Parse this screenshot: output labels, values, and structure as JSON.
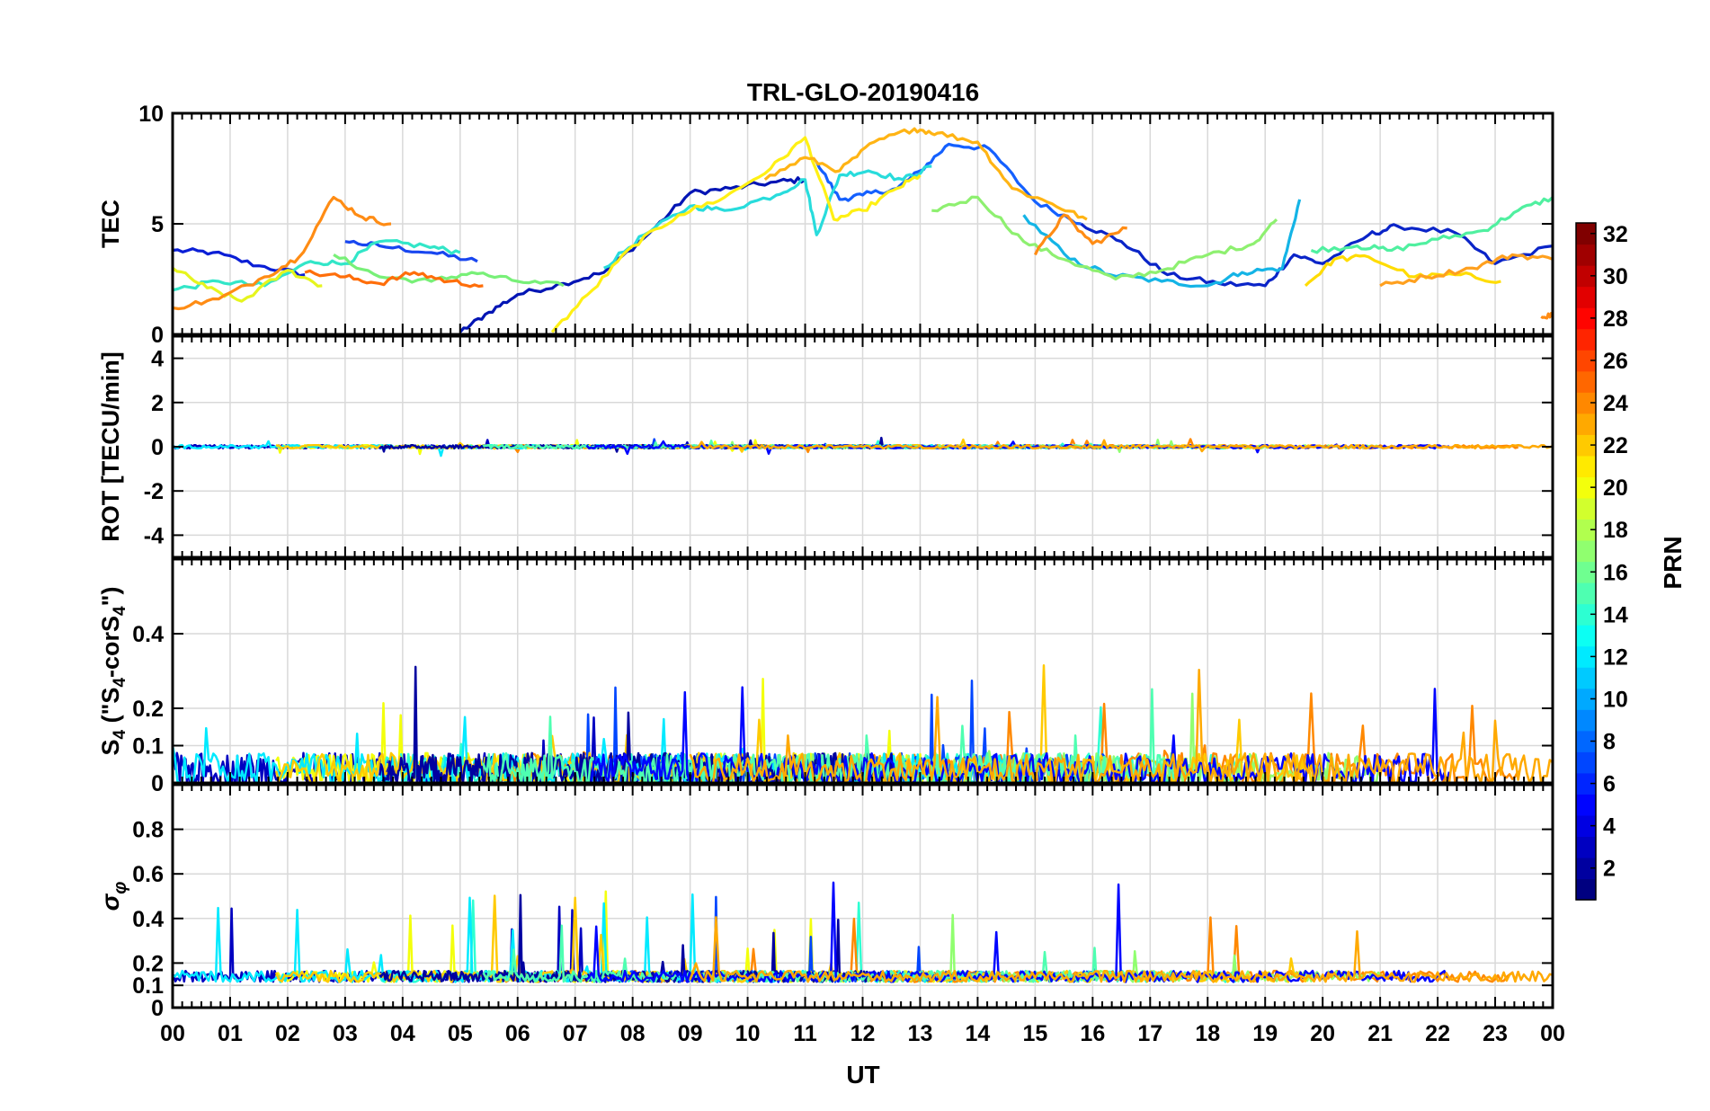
{
  "chart_data": {
    "type": "line",
    "title": "TRL-GLO-20190416",
    "xlabel": "UT",
    "x_tick_labels": [
      "00",
      "01",
      "02",
      "03",
      "04",
      "05",
      "06",
      "07",
      "08",
      "09",
      "10",
      "11",
      "12",
      "13",
      "14",
      "15",
      "16",
      "17",
      "18",
      "19",
      "20",
      "21",
      "22",
      "23",
      "00"
    ],
    "xlim": [
      0,
      24
    ],
    "colorbar": {
      "label": "PRN",
      "range": [
        1,
        32
      ],
      "tick_labels": [
        "2",
        "4",
        "6",
        "8",
        "10",
        "12",
        "14",
        "16",
        "18",
        "20",
        "22",
        "24",
        "26",
        "28",
        "30",
        "32"
      ],
      "colormap": "jet"
    },
    "panels": [
      {
        "name": "tec",
        "ylabel": "TEC",
        "ylim": [
          0,
          10
        ],
        "y_ticks": [
          0,
          5,
          10
        ],
        "y_tick_labels": [
          "0",
          "5",
          "10"
        ],
        "series": [
          {
            "prn": 3,
            "color": "#0a1ed6",
            "x": [
              0,
              0.7,
              1.5,
              2.3
            ],
            "y": [
              3.8,
              3.7,
              3.1,
              2.7
            ]
          },
          {
            "prn": 5,
            "color": "#1846f0",
            "x": [
              3.0,
              3.6,
              4.5,
              5.3
            ],
            "y": [
              4.2,
              4.0,
              3.7,
              3.3
            ]
          },
          {
            "prn": 2,
            "color": "#0014b4",
            "x": [
              5.0,
              5.5,
              6.0,
              6.8,
              7.5,
              8.3,
              9.0,
              9.7,
              10.5,
              11.0
            ],
            "y": [
              0.1,
              1.0,
              1.8,
              2.3,
              2.8,
              4.6,
              6.4,
              6.6,
              6.9,
              7.0
            ]
          },
          {
            "prn": 7,
            "color": "#1460ff",
            "x": [
              11.2,
              11.6,
              12.0,
              12.6,
              13.0,
              13.5,
              14.2,
              15.0,
              15.8
            ],
            "y": [
              7.8,
              6.1,
              6.3,
              6.6,
              7.4,
              8.6,
              8.4,
              6.0,
              5.0
            ]
          },
          {
            "prn": 4,
            "color": "#0a24c8",
            "x": [
              15.8,
              16.5,
              17.3,
              18.2,
              19.0,
              19.5,
              20.0,
              20.8,
              21.3,
              22.3,
              23.0,
              24.0
            ],
            "y": [
              5.0,
              4.2,
              2.7,
              2.3,
              2.2,
              3.6,
              3.2,
              4.5,
              4.9,
              4.6,
              3.2,
              4.0
            ]
          },
          {
            "prn": 12,
            "color": "#14b4e6",
            "x": [
              14.8,
              15.6,
              16.3,
              17.2,
              18.0,
              18.6,
              19.3,
              19.6
            ],
            "y": [
              5.4,
              3.4,
              2.7,
              2.4,
              2.2,
              2.8,
              3.0,
              6.1
            ]
          },
          {
            "prn": 14,
            "color": "#32e6c8",
            "x": [
              0,
              0.8,
              1.6,
              2.4,
              3.0,
              3.6,
              4.4,
              5.0
            ],
            "y": [
              2.0,
              2.4,
              2.2,
              3.3,
              3.2,
              4.2,
              4.0,
              3.7
            ]
          },
          {
            "prn": 13,
            "color": "#28dcdc",
            "x": [
              7.5,
              8.2,
              9.0,
              9.6,
              10.5,
              11.0,
              11.2,
              11.6,
              12.1,
              12.7,
              13.2
            ],
            "y": [
              3.0,
              4.5,
              5.8,
              5.6,
              6.3,
              7.0,
              4.5,
              7.2,
              7.4,
              7.0,
              7.6
            ]
          },
          {
            "prn": 16,
            "color": "#78f078",
            "x": [
              2.8,
              3.6,
              4.5,
              5.2,
              6.0,
              6.8
            ],
            "y": [
              3.6,
              2.6,
              2.4,
              2.8,
              2.4,
              2.2
            ]
          },
          {
            "prn": 17,
            "color": "#8ef070",
            "x": [
              13.2,
              14.0,
              14.8,
              15.6,
              16.4,
              17.2,
              18.0,
              18.8,
              19.2
            ],
            "y": [
              5.6,
              6.2,
              4.2,
              3.3,
              2.5,
              2.9,
              3.6,
              4.1,
              5.2
            ]
          },
          {
            "prn": 15,
            "color": "#50f0a0",
            "x": [
              19.8,
              20.6,
              21.2,
              22.0,
              22.8,
              23.4,
              24.0
            ],
            "y": [
              3.8,
              4.0,
              3.8,
              4.3,
              4.7,
              5.6,
              6.2
            ]
          },
          {
            "prn": 20,
            "color": "#fff014",
            "x": [
              6.6,
              7.3,
              8.0,
              8.8,
              9.6,
              10.4,
              11.0,
              11.5,
              12.0,
              12.6,
              13.0
            ],
            "y": [
              0.1,
              2.0,
              4.0,
              5.4,
              6.2,
              7.5,
              8.9,
              5.2,
              5.6,
              6.6,
              7.2
            ]
          },
          {
            "prn": 19,
            "color": "#e6f51e",
            "x": [
              0,
              0.6,
              1.2,
              2.0,
              2.6
            ],
            "y": [
              3.0,
              2.1,
              1.5,
              2.9,
              2.2
            ]
          },
          {
            "prn": 21,
            "color": "#ffdc00",
            "x": [
              19.7,
              20.2,
              20.8,
              21.6,
              22.4,
              23.1
            ],
            "y": [
              2.2,
              3.4,
              3.5,
              2.6,
              2.7,
              2.4
            ]
          },
          {
            "prn": 22,
            "color": "#ffb414",
            "x": [
              10.3,
              11.0,
              11.6,
              12.2,
              12.9,
              13.3,
              14.0,
              14.6,
              15.3,
              15.9
            ],
            "y": [
              7.0,
              8.0,
              7.4,
              8.7,
              9.3,
              9.1,
              8.7,
              6.6,
              5.9,
              5.2
            ]
          },
          {
            "prn": 23,
            "color": "#ffa01e",
            "x": [
              21.0,
              21.8,
              22.6,
              23.3,
              24.0
            ],
            "y": [
              2.2,
              2.6,
              3.0,
              3.6,
              3.4
            ]
          },
          {
            "prn": 24,
            "color": "#ff8c14",
            "x": [
              0,
              0.8,
              1.6,
              2.2,
              2.8,
              3.3,
              3.8
            ],
            "y": [
              1.2,
              1.6,
              2.6,
              3.5,
              6.2,
              5.3,
              5.0
            ]
          },
          {
            "prn": 25,
            "color": "#ff6e0a",
            "x": [
              2.3,
              3.0,
              3.6,
              4.2,
              4.8,
              5.4
            ],
            "y": [
              2.8,
              2.6,
              2.3,
              2.8,
              2.4,
              2.2
            ]
          },
          {
            "prn": 24,
            "color": "#ff8c14",
            "x": [
              15.0,
              15.5,
              16.0,
              16.6
            ],
            "y": [
              3.6,
              5.4,
              4.1,
              4.8
            ]
          },
          {
            "prn": 24,
            "color": "#ff8c14",
            "x": [
              23.8,
              24.0
            ],
            "y": [
              0.8,
              0.9
            ]
          }
        ]
      },
      {
        "name": "rot",
        "ylabel": "ROT [TECU/min]",
        "ylim": [
          -5,
          5
        ],
        "y_ticks": [
          -4,
          -2,
          0,
          2,
          4
        ],
        "y_tick_labels": [
          "-4",
          "-2",
          "0",
          "2",
          "4"
        ],
        "noise": {
          "baseline": 0,
          "amplitude": 0.15,
          "spike": 0.35
        }
      },
      {
        "name": "s4",
        "ylabel": "S4 (\"S4-corS4\")",
        "ylabel_parts": [
          "S",
          "4",
          " (\"S",
          "4",
          "-corS",
          "4",
          "\")"
        ],
        "ylim": [
          0,
          0.6
        ],
        "y_ticks": [
          0,
          0.1,
          0.2,
          0.4
        ],
        "y_tick_labels": [
          "0",
          "0.1",
          "0.2",
          "0.4"
        ],
        "noise": {
          "baseline": 0.035,
          "amplitude": 0.09,
          "spike": 0.24
        }
      },
      {
        "name": "sigma-phi",
        "ylabel": "σφ",
        "ylabel_symbol": "σ",
        "ylabel_subscript": "φ",
        "ylim": [
          0,
          1
        ],
        "y_ticks": [
          0,
          0.1,
          0.2,
          0.4,
          0.6,
          0.8
        ],
        "y_tick_labels": [
          "0",
          "0.1",
          "0.2",
          "0.4",
          "0.6",
          "0.8"
        ],
        "noise": {
          "baseline": 0.14,
          "amplitude": 0.05,
          "spike": 0.4
        }
      }
    ]
  }
}
